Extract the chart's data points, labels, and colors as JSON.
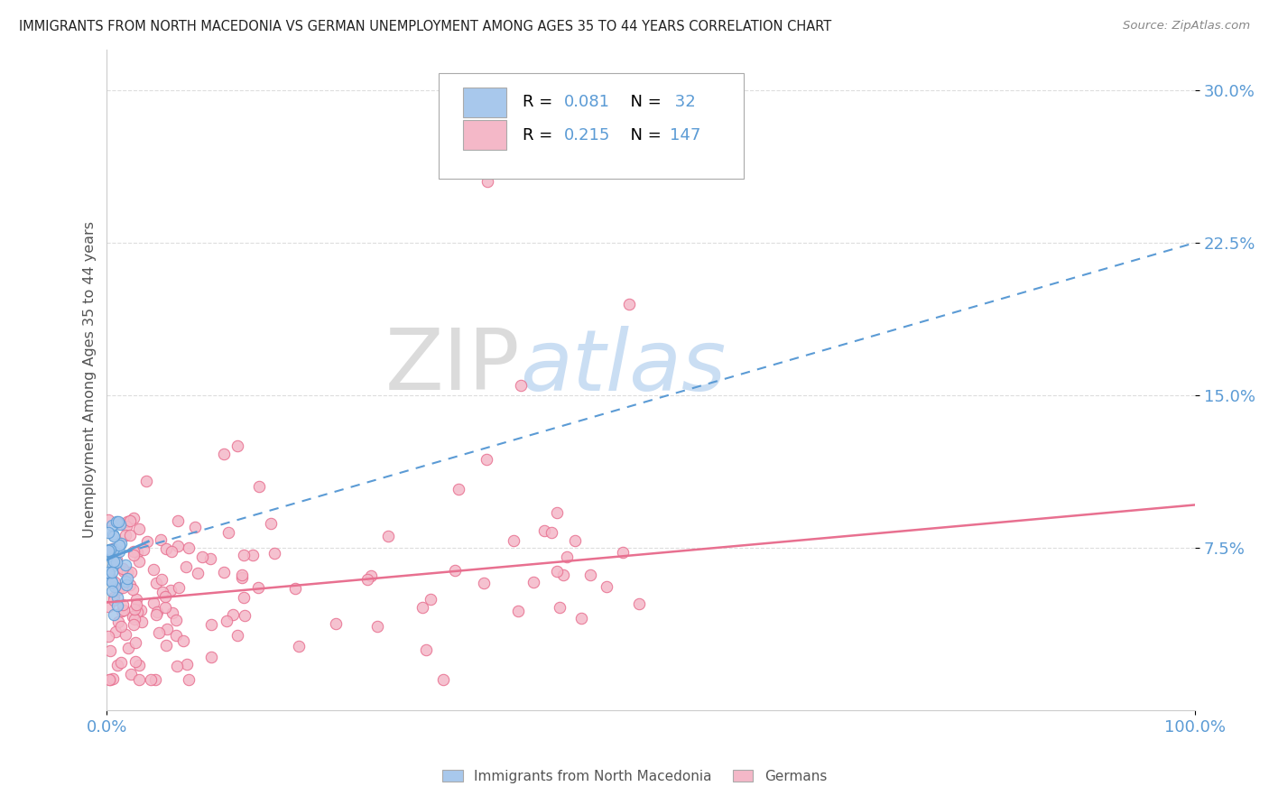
{
  "title": "IMMIGRANTS FROM NORTH MACEDONIA VS GERMAN UNEMPLOYMENT AMONG AGES 35 TO 44 YEARS CORRELATION CHART",
  "source_text": "Source: ZipAtlas.com",
  "ylabel": "Unemployment Among Ages 35 to 44 years",
  "ytick_vals": [
    0.075,
    0.15,
    0.225,
    0.3
  ],
  "ytick_labels": [
    "7.5%",
    "15.0%",
    "22.5%",
    "30.0%"
  ],
  "xlim": [
    0.0,
    1.0
  ],
  "ylim": [
    -0.005,
    0.32
  ],
  "blue_color": "#A8C8EC",
  "pink_color": "#F4B8C8",
  "blue_edge": "#5B9BD5",
  "pink_edge": "#E87090",
  "trend_blue_color": "#5B9BD5",
  "trend_pink_color": "#E87090",
  "axis_label_color": "#5B9BD5",
  "grid_color": "#DDDDDD",
  "background_color": "#FFFFFF",
  "watermark_zip_color": "#CCCCCC",
  "watermark_atlas_color": "#A8C8EC",
  "legend_r_color": "#000000",
  "legend_n_color": "#5B9BD5",
  "legend_val_color": "#5B9BD5",
  "marker_size": 80,
  "marker_linewidth": 0.8
}
